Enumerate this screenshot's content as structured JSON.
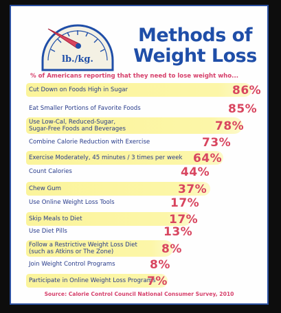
{
  "header": {
    "dial_label": "lb./kg.",
    "title_line1": "Methods of",
    "title_line2": "Weight Loss",
    "subtitle": "% of Americans reporting that they need to lose weight who..."
  },
  "footer": {
    "source": "Source: Calorie Control Council National Consumer Survey, 2010"
  },
  "colors": {
    "title": "#1f4ea8",
    "label": "#263a8a",
    "percent": "#d8455f",
    "highlight": "#fbf49b"
  },
  "chart_data": {
    "type": "table",
    "categories": [
      "Cut Down on Foods High in Sugar",
      "Eat Smaller Portions of Favorite Foods",
      "Use Low-Cal, Reduced-Sugar,\nSugar-Free Foods and Beverages",
      "Combine Calorie Reduction with Exercise",
      "Exercise Moderately, 45 minutes / 3 times per week",
      "Count Calories",
      "Chew Gum",
      "Use Online Weight Loss Tools",
      "Skip Meals to Diet",
      "Use Diet Pills",
      "Follow a Restrictive Weight Loss Diet\n(such as Atkins or The Zone)",
      "Join Weight Control Programs",
      "Participate in Online Weight Loss Programs"
    ],
    "values": [
      86,
      85,
      78,
      73,
      64,
      44,
      37,
      17,
      17,
      13,
      8,
      8,
      7
    ],
    "value_labels": [
      "86%",
      "85%",
      "78%",
      "73%",
      "64%",
      "44%",
      "37%",
      "17%",
      "17%",
      "13%",
      "8%",
      "8%",
      "7%"
    ],
    "highlighted": [
      true,
      false,
      true,
      false,
      true,
      false,
      true,
      false,
      true,
      false,
      true,
      false,
      true
    ],
    "title": "Methods of Weight Loss"
  }
}
